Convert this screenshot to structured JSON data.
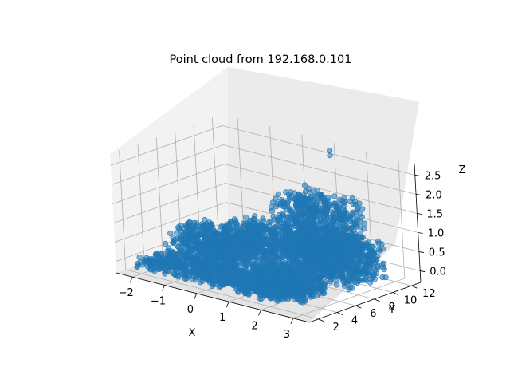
{
  "chart_data": {
    "type": "scatter",
    "projection": "3d",
    "title": "Point cloud from 192.168.0.101",
    "xlabel": "X",
    "ylabel": "Y",
    "zlabel": "Z",
    "xlim": [
      -2.5,
      3.5
    ],
    "ylim": [
      1,
      13
    ],
    "zlim": [
      -0.3,
      2.8
    ],
    "xticks": [
      -2,
      -1,
      0,
      1,
      2,
      3
    ],
    "yticks": [
      2,
      4,
      6,
      8,
      10,
      12
    ],
    "zticks": [
      0.0,
      0.5,
      1.0,
      1.5,
      2.0,
      2.5
    ],
    "xtick_labels": [
      "−2",
      "−1",
      "0",
      "1",
      "2",
      "3"
    ],
    "ytick_labels": [
      "2",
      "4",
      "6",
      "8",
      "10",
      "12"
    ],
    "ztick_labels": [
      "0.0",
      "0.5",
      "1.0",
      "1.5",
      "2.0",
      "2.5"
    ],
    "grid": true,
    "color": "#1f77b4",
    "pane_color": "#f2f2f2",
    "regions": [
      {
        "x": [
          -2.0,
          2.5
        ],
        "y": [
          1.5,
          4.5
        ],
        "z": [
          -0.1,
          0.15
        ]
      },
      {
        "x": [
          -1.5,
          0.5
        ],
        "y": [
          3.0,
          6.5
        ],
        "z": [
          0.0,
          0.9
        ]
      },
      {
        "x": [
          -0.6,
          2.2
        ],
        "y": [
          5.0,
          9.0
        ],
        "z": [
          0.2,
          1.0
        ]
      },
      {
        "x": [
          0.5,
          2.5
        ],
        "y": [
          7.5,
          11.0
        ],
        "z": [
          0.3,
          1.8
        ]
      },
      {
        "x": [
          1.5,
          3.3
        ],
        "y": [
          6.0,
          10.5
        ],
        "z": [
          0.0,
          1.0
        ]
      },
      {
        "x": [
          1.0,
          2.8
        ],
        "y": [
          2.5,
          5.5
        ],
        "z": [
          -0.1,
          0.45
        ]
      }
    ],
    "points": [
      {
        "x": 1.0,
        "y": 12.5,
        "z": 2.65
      },
      {
        "x": 1.0,
        "y": 12.5,
        "z": 2.52
      },
      {
        "x": -1.8,
        "y": 4.0,
        "z": 0.35
      }
    ]
  }
}
